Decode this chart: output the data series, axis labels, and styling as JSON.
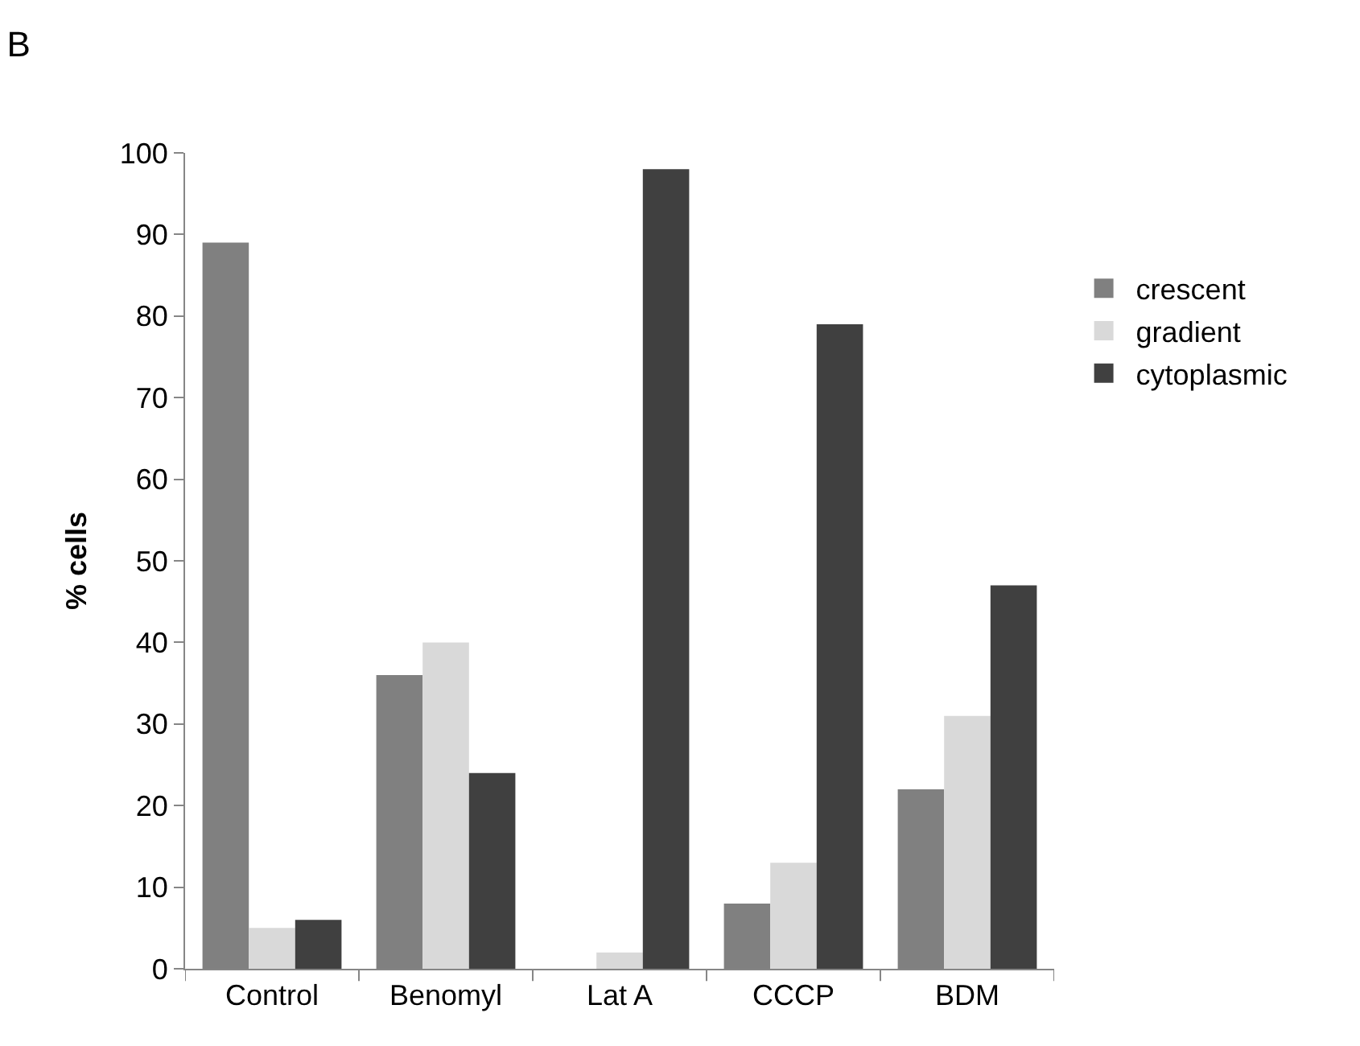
{
  "chart_data": {
    "type": "bar",
    "title": "B",
    "ylabel": "% cells",
    "categories": [
      "Control",
      "Benomyl",
      "Lat A",
      "CCCP",
      "BDM"
    ],
    "series": [
      {
        "name": "crescent",
        "color": "#808080",
        "values": [
          89,
          36,
          0,
          8,
          22
        ]
      },
      {
        "name": "gradient",
        "color": "#d9d9d9",
        "values": [
          5,
          40,
          2,
          13,
          31
        ]
      },
      {
        "name": "cytoplasmic",
        "color": "#404040",
        "values": [
          6,
          24,
          98,
          79,
          47
        ]
      }
    ],
    "ylim": [
      0,
      100
    ],
    "yticks": [
      0,
      10,
      20,
      30,
      40,
      50,
      60,
      70,
      80,
      90,
      100
    ],
    "legend": "right"
  }
}
